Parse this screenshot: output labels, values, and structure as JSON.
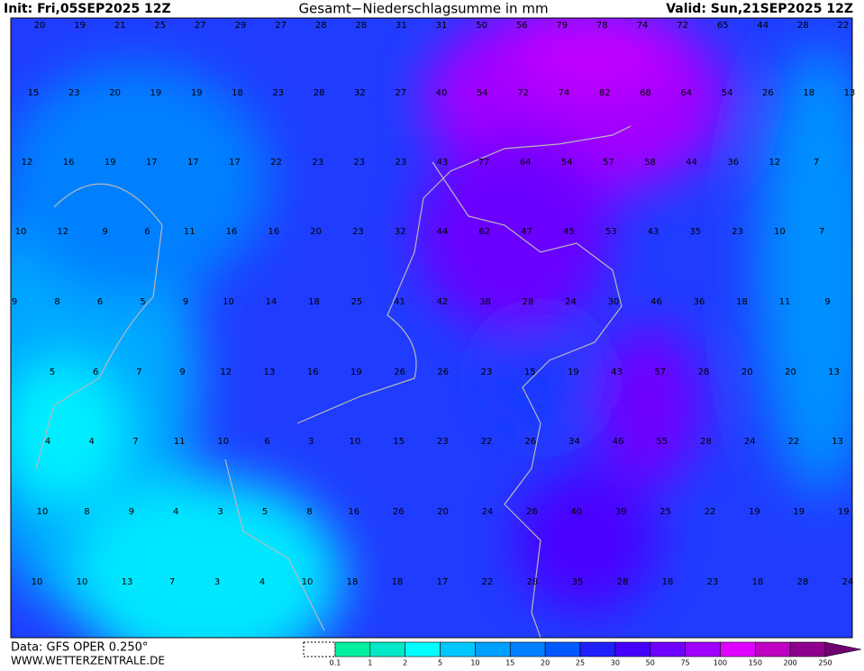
{
  "header": {
    "init": "Init: Fri,05SEP2025 12Z",
    "title": "Gesamt−Niederschlagsumme in mm",
    "valid": "Valid: Sun,21SEP2025 12Z"
  },
  "footer": {
    "data": "Data: GFS OPER 0.250°",
    "site": "WWW.WETTERZENTRALE.DE"
  },
  "grid": [
    [
      20,
      19,
      21,
      25,
      27,
      29,
      27,
      28,
      28,
      31,
      31,
      50,
      56,
      79,
      78,
      74,
      72,
      65,
      44,
      28,
      22
    ],
    [
      15,
      23,
      20,
      19,
      19,
      18,
      23,
      28,
      32,
      27,
      40,
      54,
      72,
      74,
      82,
      68,
      64,
      54,
      26,
      18,
      13
    ],
    [
      12,
      16,
      19,
      17,
      17,
      17,
      22,
      23,
      23,
      23,
      43,
      77,
      64,
      54,
      57,
      58,
      44,
      36,
      12,
      7
    ],
    [
      10,
      12,
      9,
      6,
      11,
      16,
      16,
      20,
      23,
      32,
      44,
      62,
      47,
      45,
      53,
      43,
      35,
      23,
      10,
      7
    ],
    [
      9,
      8,
      6,
      5,
      9,
      10,
      14,
      18,
      25,
      41,
      42,
      38,
      28,
      24,
      30,
      46,
      36,
      18,
      11,
      9
    ],
    [
      5,
      6,
      7,
      9,
      12,
      13,
      16,
      19,
      26,
      26,
      23,
      15,
      19,
      43,
      57,
      28,
      20,
      20,
      13
    ],
    [
      4,
      4,
      7,
      11,
      10,
      6,
      3,
      10,
      15,
      23,
      22,
      26,
      34,
      46,
      55,
      28,
      24,
      22,
      13
    ],
    [
      10,
      8,
      9,
      4,
      3,
      5,
      8,
      16,
      26,
      20,
      24,
      26,
      40,
      39,
      25,
      22,
      19,
      19,
      19
    ],
    [
      10,
      10,
      13,
      7,
      3,
      4,
      10,
      18,
      18,
      17,
      22,
      28,
      35,
      28,
      18,
      23,
      18,
      28,
      24
    ]
  ],
  "colorbar": {
    "ticks": [
      0.1,
      1,
      2,
      5,
      10,
      15,
      20,
      25,
      30,
      50,
      75,
      100,
      150,
      200,
      250
    ],
    "colors": [
      "#00f0a0",
      "#00e8c8",
      "#00ffff",
      "#00c8ff",
      "#00a0ff",
      "#0080ff",
      "#0058ff",
      "#2020ff",
      "#4400ff",
      "#7000ff",
      "#a000ff",
      "#e000ff",
      "#c000c0",
      "#900090",
      "#700070"
    ]
  }
}
